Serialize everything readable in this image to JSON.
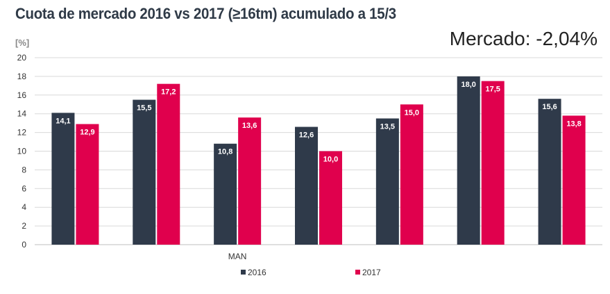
{
  "header": {
    "title": "Cuota de mercado 2016 vs 2017 (≥16tm) acumulado a 15/3",
    "subtitle": "Mercado: -2,04%"
  },
  "chart_data": {
    "type": "bar",
    "ylabel": "[%]",
    "ylim": [
      0,
      20
    ],
    "yticks": [
      0,
      2,
      4,
      6,
      8,
      10,
      12,
      14,
      16,
      18,
      20
    ],
    "grid": true,
    "categories": [
      "",
      "",
      "MAN",
      "",
      "",
      "",
      ""
    ],
    "series": [
      {
        "name": "2016",
        "color": "#2f3a4a",
        "values": [
          14.1,
          15.5,
          10.8,
          12.6,
          13.5,
          18.0,
          15.6
        ],
        "labels": [
          "14,1",
          "15,5",
          "10,8",
          "12,6",
          "13,5",
          "18,0",
          "15,6"
        ]
      },
      {
        "name": "2017",
        "color": "#e0004d",
        "values": [
          12.9,
          17.2,
          13.6,
          10.0,
          15.0,
          17.5,
          13.8
        ],
        "labels": [
          "12,9",
          "17,2",
          "13,6",
          "10,0",
          "15,0",
          "17,5",
          "13,8"
        ]
      }
    ],
    "legend_position": "bottom"
  }
}
